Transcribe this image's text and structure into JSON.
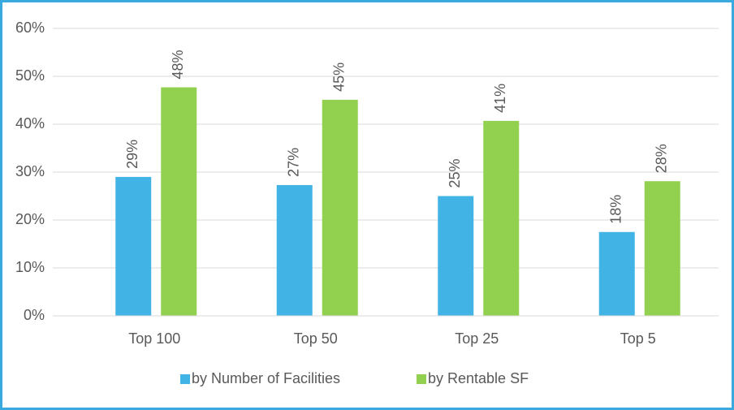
{
  "chart_data": {
    "type": "bar",
    "categories": [
      "Top 100",
      "Top 50",
      "Top 25",
      "Top 5"
    ],
    "series": [
      {
        "name": "by Number of Facilities",
        "color": "#41b4e5",
        "values": [
          29.0,
          27.3,
          25.0,
          17.5
        ],
        "value_labels": [
          "29%",
          "27%",
          "25%",
          "18%"
        ]
      },
      {
        "name": "by Rentable SF",
        "color": "#92d050",
        "values": [
          47.7,
          45.1,
          40.7,
          28.1
        ],
        "value_labels": [
          "48%",
          "45%",
          "41%",
          "28%"
        ]
      }
    ],
    "ylim": [
      0,
      60
    ],
    "yticks": [
      {
        "value": 0,
        "label": "0%"
      },
      {
        "value": 10,
        "label": "10%"
      },
      {
        "value": 20,
        "label": "20%"
      },
      {
        "value": 30,
        "label": "30%"
      },
      {
        "value": 40,
        "label": "40%"
      },
      {
        "value": 50,
        "label": "50%"
      },
      {
        "value": 60,
        "label": "60%"
      }
    ],
    "grid": true,
    "legend": "bottom"
  }
}
